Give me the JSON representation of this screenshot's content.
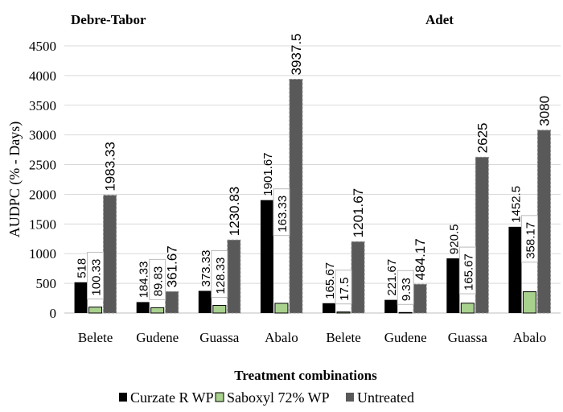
{
  "chart_data": {
    "type": "bar",
    "title": "",
    "panel_labels": [
      "Debre-Tabor",
      "Adet"
    ],
    "xlabel": "Treatment combinations",
    "ylabel": "AUDPC (% - Days)",
    "ylim": [
      0,
      4500
    ],
    "yticks": [
      0,
      500,
      1000,
      1500,
      2000,
      2500,
      3000,
      3500,
      4000,
      4500
    ],
    "grid": true,
    "legend_position": "bottom",
    "categories": [
      "Belete",
      "Gudene",
      "Guassa",
      "Abalo",
      "Belete",
      "Gudene",
      "Guassa",
      "Abalo"
    ],
    "series": [
      {
        "name": "Curzate R WP",
        "color": "#000000",
        "values": [
          518,
          184.33,
          373.33,
          1901.67,
          165.67,
          221.67,
          920.5,
          1452.5
        ],
        "labels": [
          "518",
          "184.33",
          "373.33",
          "1901.67",
          "165.67",
          "221.67",
          "920.5",
          "1452.5"
        ]
      },
      {
        "name": "Saboxyl 72% WP",
        "color": "#a9d18e",
        "values": [
          100.33,
          89.83,
          128.33,
          163.33,
          17.5,
          9.33,
          165.67,
          358.17
        ],
        "labels": [
          "100.33",
          "89.83",
          "128.33",
          "163.33",
          "17.5",
          "9.33",
          "165.67",
          "358.17"
        ]
      },
      {
        "name": "Untreated",
        "color": "#595959",
        "values": [
          1983.33,
          361.67,
          1230.83,
          3937.5,
          1201.67,
          484.17,
          2625,
          3080
        ],
        "labels": [
          "1983.33",
          "361.67",
          "1230.83",
          "3937.5",
          "1201.67",
          "484.17",
          "2625",
          "3080"
        ]
      }
    ]
  }
}
